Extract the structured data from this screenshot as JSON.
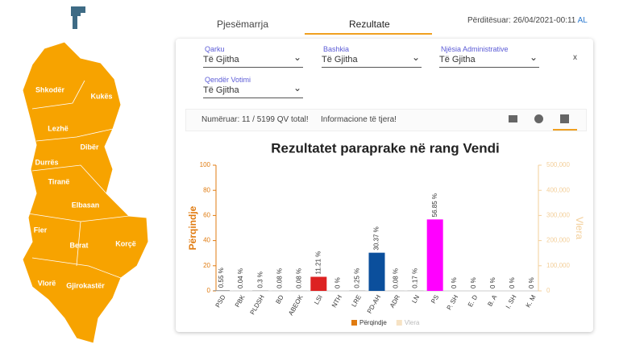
{
  "header": {
    "updated": "Përditësuar: 26/04/2021-00:11",
    "lang": "AL"
  },
  "tabs": [
    "Pjesëmarrja",
    "Rezultate"
  ],
  "filters": [
    {
      "label": "Qarku",
      "value": "Të Gjitha"
    },
    {
      "label": "Bashkia",
      "value": "Të Gjitha"
    },
    {
      "label": "Njësia Administrative",
      "value": "Të Gjitha"
    },
    {
      "label": "Qendër Votimi",
      "value": "Të Gjitha"
    }
  ],
  "close": "x",
  "toolbar": {
    "counted": "Numëruar: 11 / 5199 QV total!",
    "more": "Informacione të tjera!"
  },
  "map": {
    "regions": [
      "Shkodër",
      "Kukës",
      "Lezhë",
      "Dibër",
      "Durrës",
      "Tiranë",
      "Elbasan",
      "Fier",
      "Berat",
      "Korçë",
      "Vlorë",
      "Gjirokastër"
    ]
  },
  "chart_data": {
    "type": "bar",
    "title": "Rezultatet paraprake në rang Vendi",
    "categories": [
      "PSD",
      "PBK",
      "PLDSH",
      "BD",
      "ABEOK",
      "LSI",
      "NTH",
      "LRE",
      "PD-AH",
      "ADR",
      "LN",
      "PS",
      "P. SH",
      "E. D",
      "B. A",
      "I. SH",
      "K. M"
    ],
    "values": [
      0.55,
      0.04,
      0.3,
      0.08,
      0.08,
      11.21,
      0,
      0.25,
      30.37,
      0.08,
      0.17,
      56.85,
      0,
      0,
      0,
      0,
      0
    ],
    "value_labels": [
      "0.55 %",
      "0.04 %",
      "0.3 %",
      "0.08 %",
      "0.08 %",
      "11.21 %",
      "0 %",
      "0.25 %",
      "30.37 %",
      "0.08 %",
      "0.17 %",
      "56.85 %",
      "0 %",
      "0 %",
      "0 %",
      "0 %",
      "0 %"
    ],
    "colors": [
      "#999999",
      "#999999",
      "#999999",
      "#999999",
      "#999999",
      "#dd2222",
      "#999999",
      "#999999",
      "#0b4f9c",
      "#999999",
      "#999999",
      "#ff00ff",
      "#999999",
      "#999999",
      "#999999",
      "#999999",
      "#999999"
    ],
    "ylabel": "Përqindje",
    "y2label": "Vlera",
    "ylim": [
      0,
      100
    ],
    "yticks": [
      0,
      20,
      40,
      60,
      80,
      100
    ],
    "y2lim": [
      0,
      500000
    ],
    "y2ticks": [
      0,
      {
        "value": 100000,
        "label": "100,000"
      },
      {
        "value": 200000,
        "label": "200,000"
      },
      {
        "value": 300000,
        "label": "300,000"
      },
      {
        "value": 400000,
        "label": "400,000"
      },
      {
        "value": 500000,
        "label": "500,000"
      }
    ],
    "legend": [
      {
        "name": "Përqindje",
        "color": "#e07b10"
      },
      {
        "name": "Vlera",
        "color": "#f6e2c4"
      }
    ]
  }
}
